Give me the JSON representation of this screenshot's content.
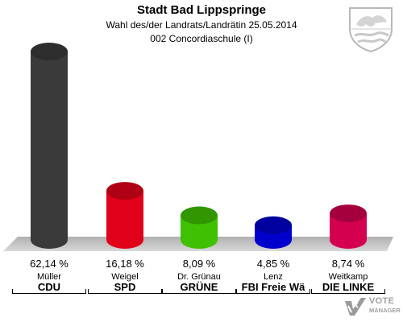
{
  "header": {
    "title": "Stadt Bad Lippspringe",
    "subtitle": "Wahl des/der Landrats/Landrätin 25.05.2014",
    "district": "002 Concordiaschule (I)"
  },
  "branding": {
    "line1": "VOTE",
    "line2": "MANAGER"
  },
  "chart_data": {
    "type": "bar",
    "title": "Stadt Bad Lippspringe",
    "subtitle": "Wahl des/der Landrats/Landrätin 25.05.2014",
    "categories": [
      "CDU",
      "SPD",
      "GRÜNE",
      "FBI Freie Wä",
      "DIE LINKE"
    ],
    "candidates": [
      "Müller",
      "Weigel",
      "Dr. Grünau",
      "Lenz",
      "Weitkamp"
    ],
    "values": [
      62.14,
      16.18,
      8.09,
      4.85,
      8.74
    ],
    "value_labels": [
      "62,14 %",
      "16,18 %",
      "8,09 %",
      "4,85 %",
      "8,74 %"
    ],
    "colors": [
      "#3a3a3a",
      "#e0001a",
      "#3fc000",
      "#0000cc",
      "#d4004f"
    ],
    "ylim": [
      0,
      70
    ],
    "grid": false,
    "legend": "none"
  }
}
